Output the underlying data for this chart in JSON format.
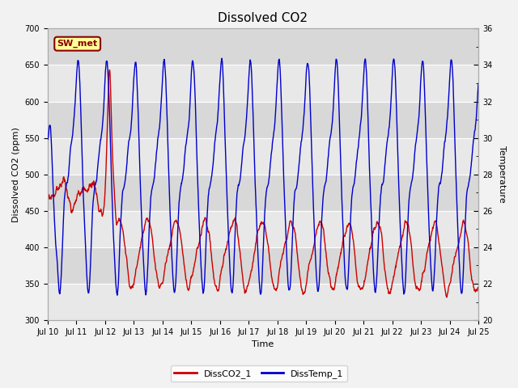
{
  "title": "Dissolved CO2",
  "xlabel": "Time",
  "ylabel_left": "Dissolved CO2 (ppm)",
  "ylabel_right": "Temperature",
  "ylim_left": [
    300,
    700
  ],
  "ylim_right": [
    20,
    36
  ],
  "yticks_left": [
    300,
    350,
    400,
    450,
    500,
    550,
    600,
    650,
    700
  ],
  "yticks_right": [
    20,
    22,
    24,
    26,
    28,
    30,
    32,
    34,
    36
  ],
  "x_tick_labels": [
    "Jul 10",
    "Jul 11",
    "Jul 12",
    "Jul 13",
    "Jul 14",
    "Jul 15",
    "Jul 16",
    "Jul 17",
    "Jul 18",
    "Jul 19",
    "Jul 20",
    "Jul 21",
    "Jul 22",
    "Jul 23",
    "Jul 24",
    "Jul 25"
  ],
  "line_red_color": "#CC0000",
  "line_blue_color": "#0000CC",
  "fig_bg_color": "#f2f2f2",
  "plot_bg_color": "#e8e8e8",
  "plot_bg_color2": "#d8d8d8",
  "legend_items": [
    "DissCO2_1",
    "DissTemp_1"
  ],
  "sw_met_label": "SW_met",
  "sw_met_bg": "#FFFF99",
  "sw_met_border": "#8B0000",
  "sw_met_text_color": "#8B0000",
  "title_fontsize": 11,
  "axis_fontsize": 8,
  "tick_fontsize": 7,
  "legend_fontsize": 8
}
